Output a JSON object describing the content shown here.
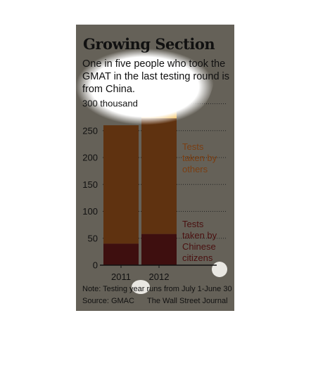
{
  "header": {
    "title": "Growing Section",
    "subtitle": "One in five people who took the GMAT in the last testing round is from China."
  },
  "legend": {
    "others": "Tests taken by others",
    "chinese": "Tests taken by Chinese citizens"
  },
  "footer": {
    "note": "Note: Testing year runs from July 1-June 30",
    "source": "Source: GMAC",
    "credit": "The Wall Street Journal"
  },
  "colors": {
    "background": "#656158",
    "others": "#5f3210",
    "chinese": "#3e0f0f",
    "highlight": "#f2b43c"
  },
  "chart_data": {
    "type": "bar",
    "stacked": true,
    "categories": [
      "2011",
      "2012"
    ],
    "series": [
      {
        "name": "Tests taken by Chinese citizens",
        "values": [
          40,
          58
        ]
      },
      {
        "name": "Tests taken by others",
        "values": [
          220,
          228
        ]
      }
    ],
    "totals": [
      260,
      286
    ],
    "y_top_label": "300 thousand",
    "y_ticks": [
      0,
      50,
      100,
      150,
      200,
      250
    ],
    "ylim": [
      0,
      300
    ],
    "grid": true,
    "grid_style": "dotted"
  }
}
